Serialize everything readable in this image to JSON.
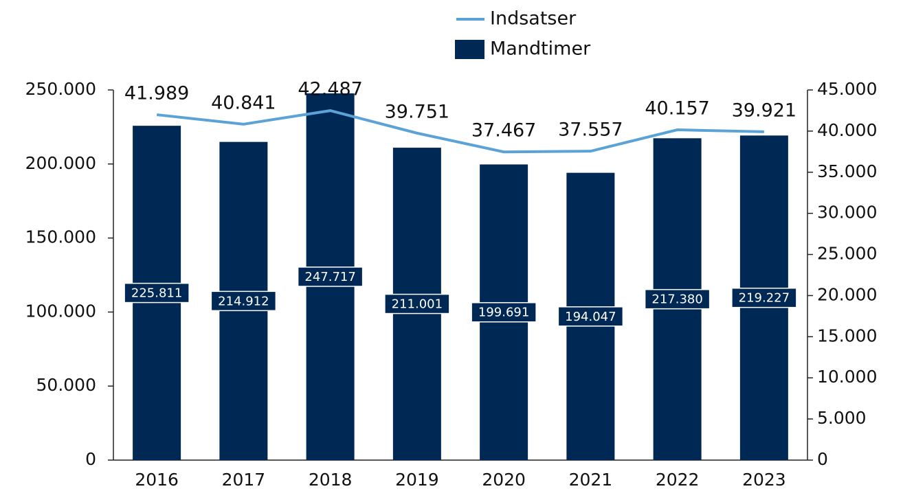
{
  "chart_data": {
    "type": "bar",
    "categories": [
      "2016",
      "2017",
      "2018",
      "2019",
      "2020",
      "2021",
      "2022",
      "2023"
    ],
    "series": [
      {
        "name": "Indsatser",
        "type": "line",
        "axis": "y2",
        "color": "#5ba3d6",
        "values": [
          41989,
          40841,
          42487,
          39751,
          37467,
          37557,
          40157,
          39921
        ],
        "value_labels": [
          "41.989",
          "40.841",
          "42.487",
          "39.751",
          "37.467",
          "37.557",
          "40.157",
          "39.921"
        ]
      },
      {
        "name": "Mandtimer",
        "type": "bar",
        "color": "#002855",
        "values": [
          225811,
          214912,
          247717,
          211001,
          199691,
          194047,
          217380,
          219227
        ],
        "value_labels": [
          "225.811",
          "214.912",
          "247.717",
          "211.001",
          "199.691",
          "194.047",
          "217.380",
          "219.227"
        ]
      }
    ],
    "ylim": [
      0,
      250000
    ],
    "yticks": [
      0,
      {
        "value": 50000,
        "label": "50.000"
      },
      {
        "value": 100000,
        "label": "100.000"
      },
      {
        "value": 150000,
        "label": "150.000"
      },
      {
        "value": 200000,
        "label": "200.000"
      },
      {
        "value": 250000,
        "label": "250.000"
      }
    ],
    "y2lim": [
      0,
      45000
    ],
    "y2ticks": [
      0,
      {
        "value": 5000,
        "label": "5.000"
      },
      {
        "value": 10000,
        "label": "10.000"
      },
      {
        "value": 15000,
        "label": "15.000"
      },
      {
        "value": 20000,
        "label": "20.000"
      },
      {
        "value": 25000,
        "label": "25.000"
      },
      {
        "value": 30000,
        "label": "30.000"
      },
      {
        "value": 35000,
        "label": "35.000"
      },
      {
        "value": 40000,
        "label": "40.000"
      },
      {
        "value": 45000,
        "label": "45.000"
      }
    ],
    "legend": "top"
  }
}
